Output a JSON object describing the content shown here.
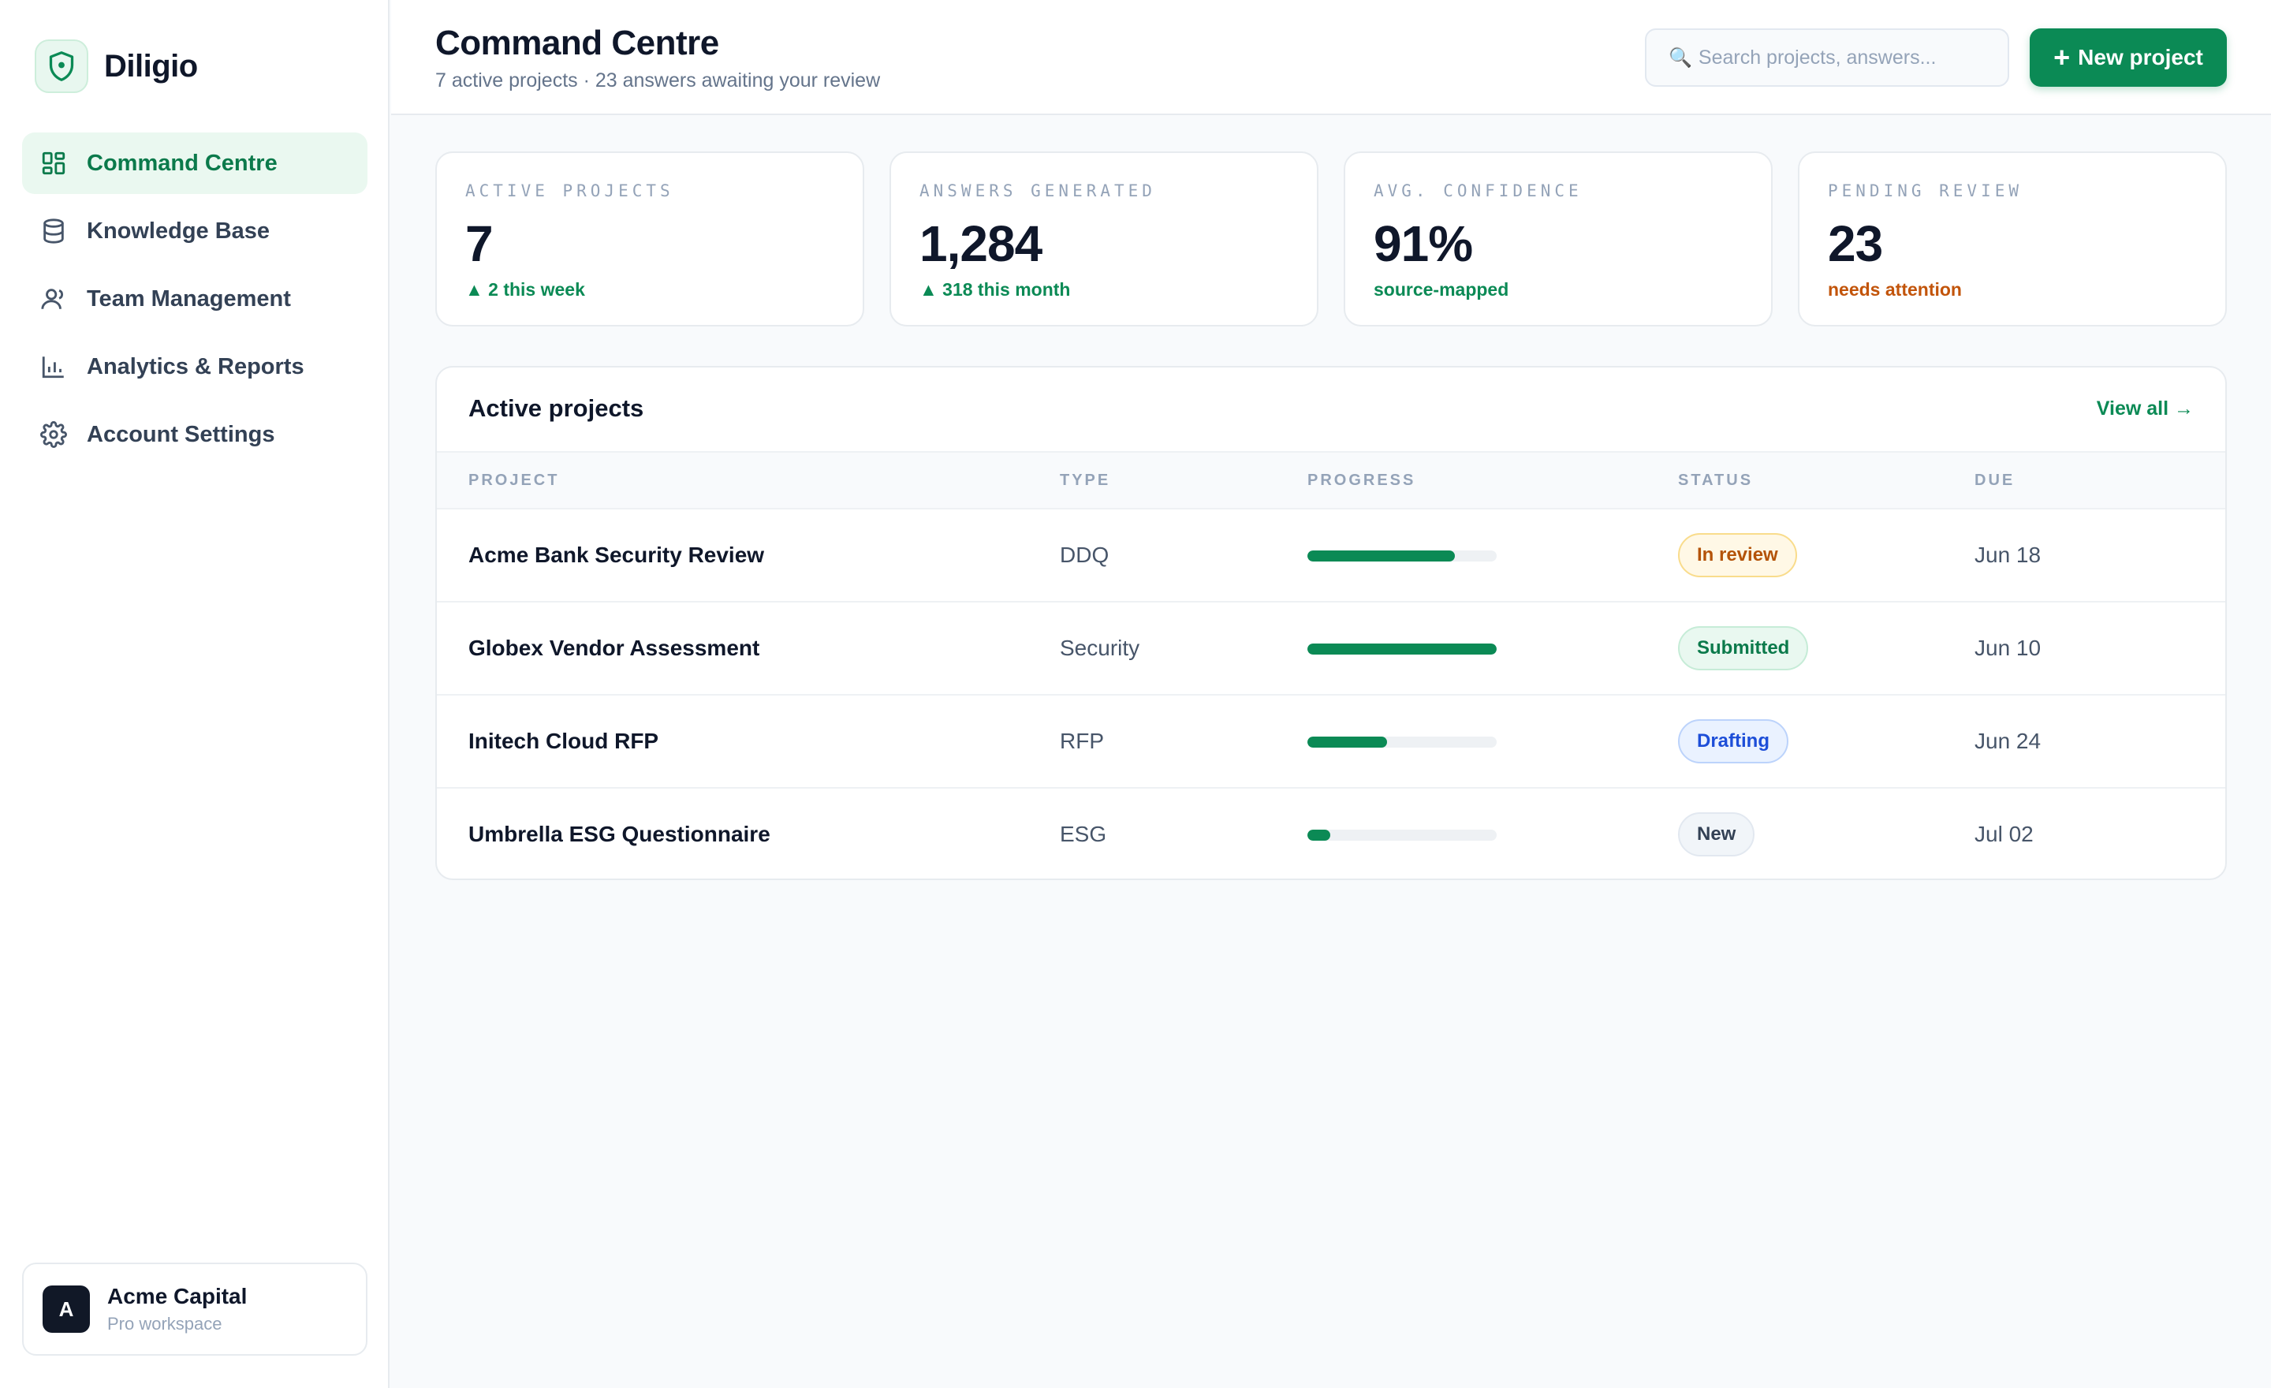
{
  "brand": {
    "name": "Diligio",
    "logo_icon": "shield-icon"
  },
  "sidebar": {
    "items": [
      {
        "label": "Command Centre",
        "icon": "dashboard-grid-icon",
        "active": true
      },
      {
        "label": "Knowledge Base",
        "icon": "database-icon",
        "active": false
      },
      {
        "label": "Team Management",
        "icon": "user-icon",
        "active": false
      },
      {
        "label": "Analytics & Reports",
        "icon": "bar-chart-icon",
        "active": false
      },
      {
        "label": "Account Settings",
        "icon": "gear-icon",
        "active": false
      }
    ],
    "workspace": {
      "initial": "A",
      "name": "Acme Capital",
      "plan": "Pro workspace"
    }
  },
  "header": {
    "title": "Command Centre",
    "subtitle": "7 active projects · 23 answers awaiting your review",
    "search_placeholder": "Search projects, answers...",
    "search_icon": "🔍",
    "new_project_icon": "+",
    "new_project_label": "New project"
  },
  "stats": [
    {
      "label": "ACTIVE PROJECTS",
      "value": "7",
      "delta": "▲ 2 this week",
      "tone": "positive"
    },
    {
      "label": "ANSWERS GENERATED",
      "value": "1,284",
      "delta": "▲ 318 this month",
      "tone": "positive"
    },
    {
      "label": "AVG. CONFIDENCE",
      "value": "91%",
      "delta": "source-mapped",
      "tone": "positive"
    },
    {
      "label": "PENDING REVIEW",
      "value": "23",
      "delta": "needs attention",
      "tone": "warning"
    }
  ],
  "projects": {
    "title": "Active projects",
    "view_all": "View all →",
    "columns": [
      "PROJECT",
      "TYPE",
      "PROGRESS",
      "STATUS",
      "DUE"
    ],
    "rows": [
      {
        "name": "Acme Bank Security Review",
        "type": "DDQ",
        "progress": 0.78,
        "status": "In review",
        "status_kind": "review",
        "due": "Jun 18"
      },
      {
        "name": "Globex Vendor Assessment",
        "type": "Security",
        "progress": 1.0,
        "status": "Submitted",
        "status_kind": "submitted",
        "due": "Jun 10"
      },
      {
        "name": "Initech Cloud RFP",
        "type": "RFP",
        "progress": 0.42,
        "status": "Drafting",
        "status_kind": "drafting",
        "due": "Jun 24"
      },
      {
        "name": "Umbrella ESG Questionnaire",
        "type": "ESG",
        "progress": 0.12,
        "status": "New",
        "status_kind": "new",
        "due": "Jul 02"
      }
    ]
  },
  "colors": {
    "accent": "#0b8a55",
    "warning": "#c2540a"
  }
}
